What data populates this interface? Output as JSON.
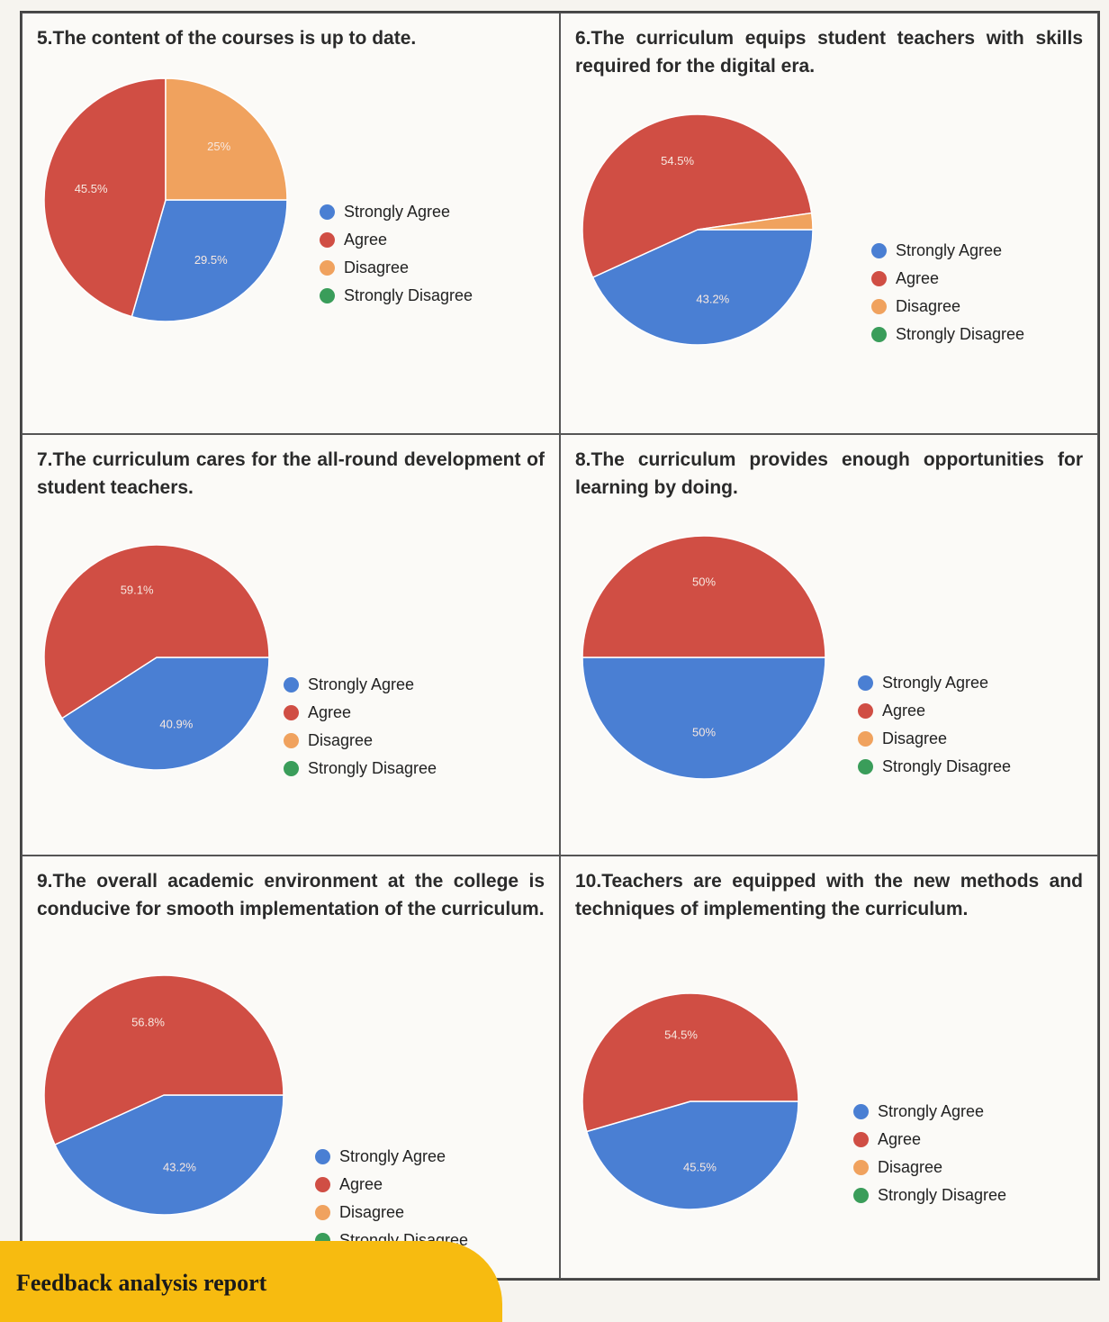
{
  "legend_labels": [
    "Strongly Agree",
    "Agree",
    "Disagree",
    "Strongly Disagree"
  ],
  "colors": {
    "strongly_agree": "#4a7fd3",
    "agree": "#d04e44",
    "disagree": "#f0a25e",
    "strongly_disagree": "#3a9d5a"
  },
  "chart_data": [
    {
      "type": "pie",
      "title": "5.The content of the courses is up to date.",
      "categories": [
        "Strongly Agree",
        "Agree",
        "Disagree",
        "Strongly Disagree"
      ],
      "values": [
        29.5,
        45.5,
        25,
        0
      ],
      "data_labels": [
        "29.5%",
        "45.5%",
        "25%",
        ""
      ]
    },
    {
      "type": "pie",
      "title": "6.The curriculum equips student teachers with skills required for the digital era.",
      "categories": [
        "Strongly Agree",
        "Agree",
        "Disagree",
        "Strongly Disagree"
      ],
      "values": [
        43.2,
        54.5,
        2.3,
        0
      ],
      "data_labels": [
        "43.2%",
        "54.5%",
        "",
        ""
      ]
    },
    {
      "type": "pie",
      "title": "7.The curriculum cares for the all-round development of student teachers.",
      "categories": [
        "Strongly Agree",
        "Agree",
        "Disagree",
        "Strongly Disagree"
      ],
      "values": [
        40.9,
        59.1,
        0,
        0
      ],
      "data_labels": [
        "40.9%",
        "59.1%",
        "",
        ""
      ]
    },
    {
      "type": "pie",
      "title": "8.The curriculum provides enough opportunities for learning by doing.",
      "categories": [
        "Strongly Agree",
        "Agree",
        "Disagree",
        "Strongly Disagree"
      ],
      "values": [
        50,
        50,
        0,
        0
      ],
      "data_labels": [
        "50%",
        "50%",
        "",
        ""
      ]
    },
    {
      "type": "pie",
      "title": "9.The overall academic environment at the college is conducive for smooth implementation of the curriculum.",
      "categories": [
        "Strongly Agree",
        "Agree",
        "Disagree",
        "Strongly Disagree"
      ],
      "values": [
        43.2,
        56.8,
        0,
        0
      ],
      "data_labels": [
        "43.2%",
        "56.8%",
        "",
        ""
      ]
    },
    {
      "type": "pie",
      "title": "10.Teachers are equipped with the new methods and techniques of implementing the curriculum.",
      "categories": [
        "Strongly Agree",
        "Agree",
        "Disagree",
        "Strongly Disagree"
      ],
      "values": [
        45.5,
        54.5,
        0,
        0
      ],
      "data_labels": [
        "45.5%",
        "54.5%",
        "",
        ""
      ]
    }
  ],
  "banner": {
    "text": "Feedback analysis report"
  }
}
